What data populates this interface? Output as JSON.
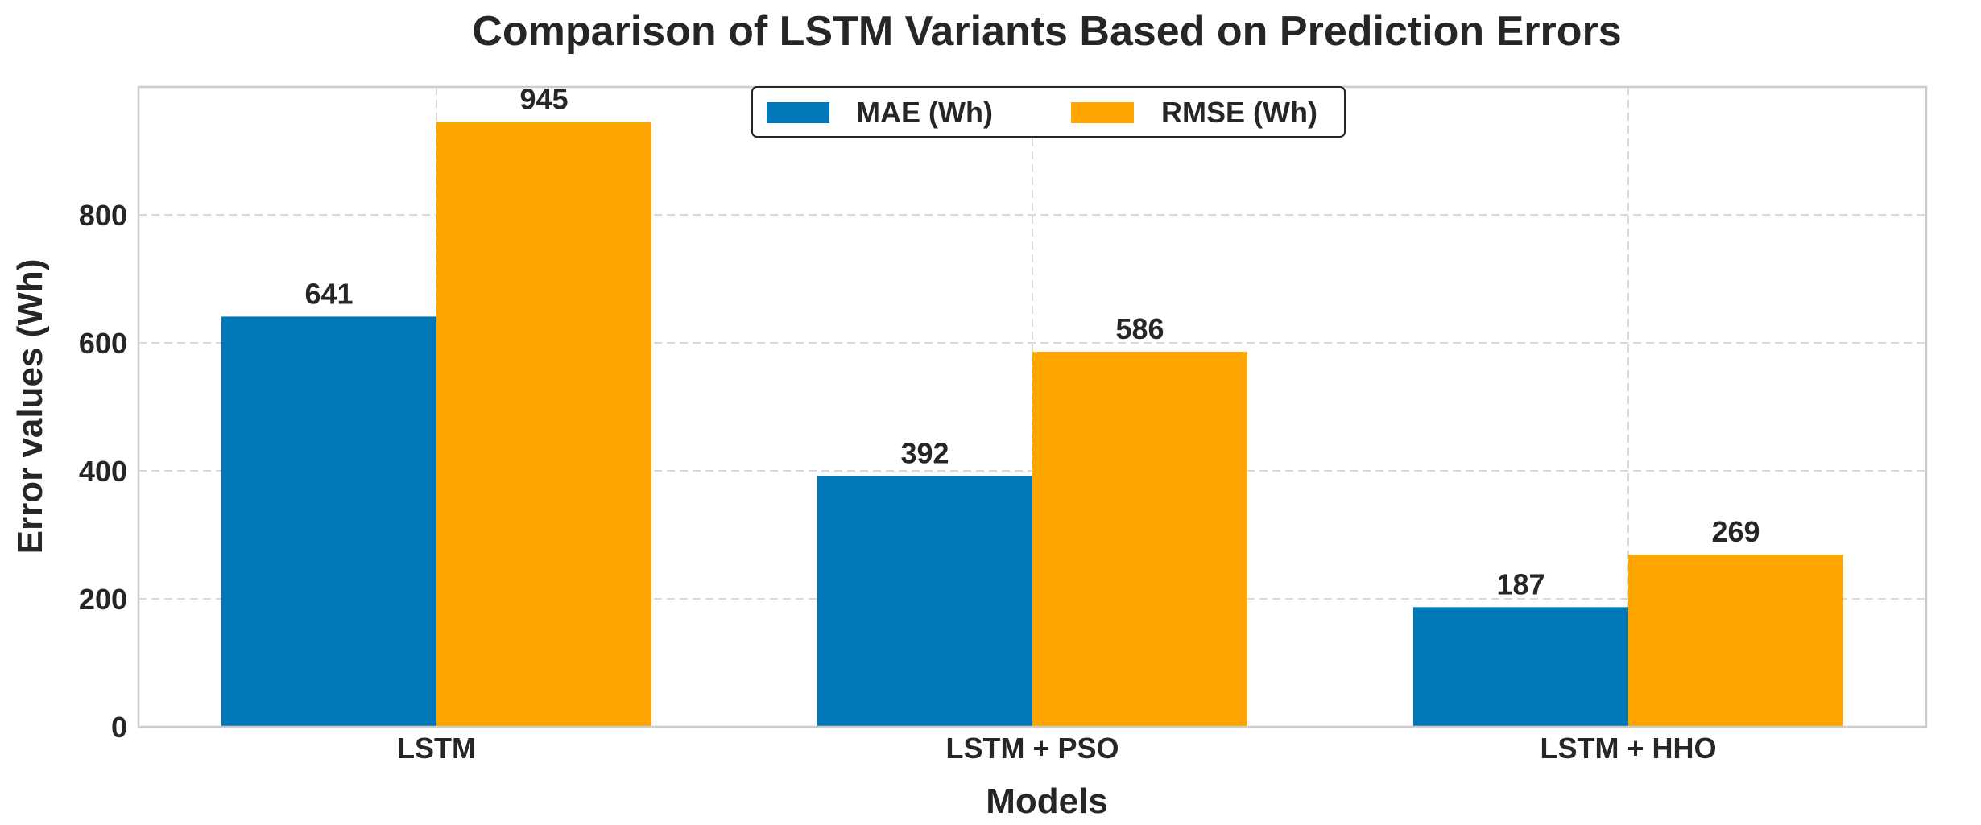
{
  "chart_data": {
    "type": "bar",
    "title": "Comparison of LSTM Variants Based on Prediction Errors",
    "xlabel": "Models",
    "ylabel": "Error values (Wh)",
    "categories": [
      "LSTM",
      "LSTM + PSO",
      "LSTM + HHO"
    ],
    "series": [
      {
        "name": "MAE (Wh)",
        "color": "#0077b6",
        "values": [
          641,
          392,
          187
        ]
      },
      {
        "name": "RMSE (Wh)",
        "color": "#ffa500",
        "values": [
          945,
          586,
          269
        ]
      }
    ],
    "yticks": [
      0,
      200,
      400,
      600,
      800
    ],
    "ylim": [
      0,
      1000
    ],
    "grid": true,
    "legend_position": "top-center"
  }
}
